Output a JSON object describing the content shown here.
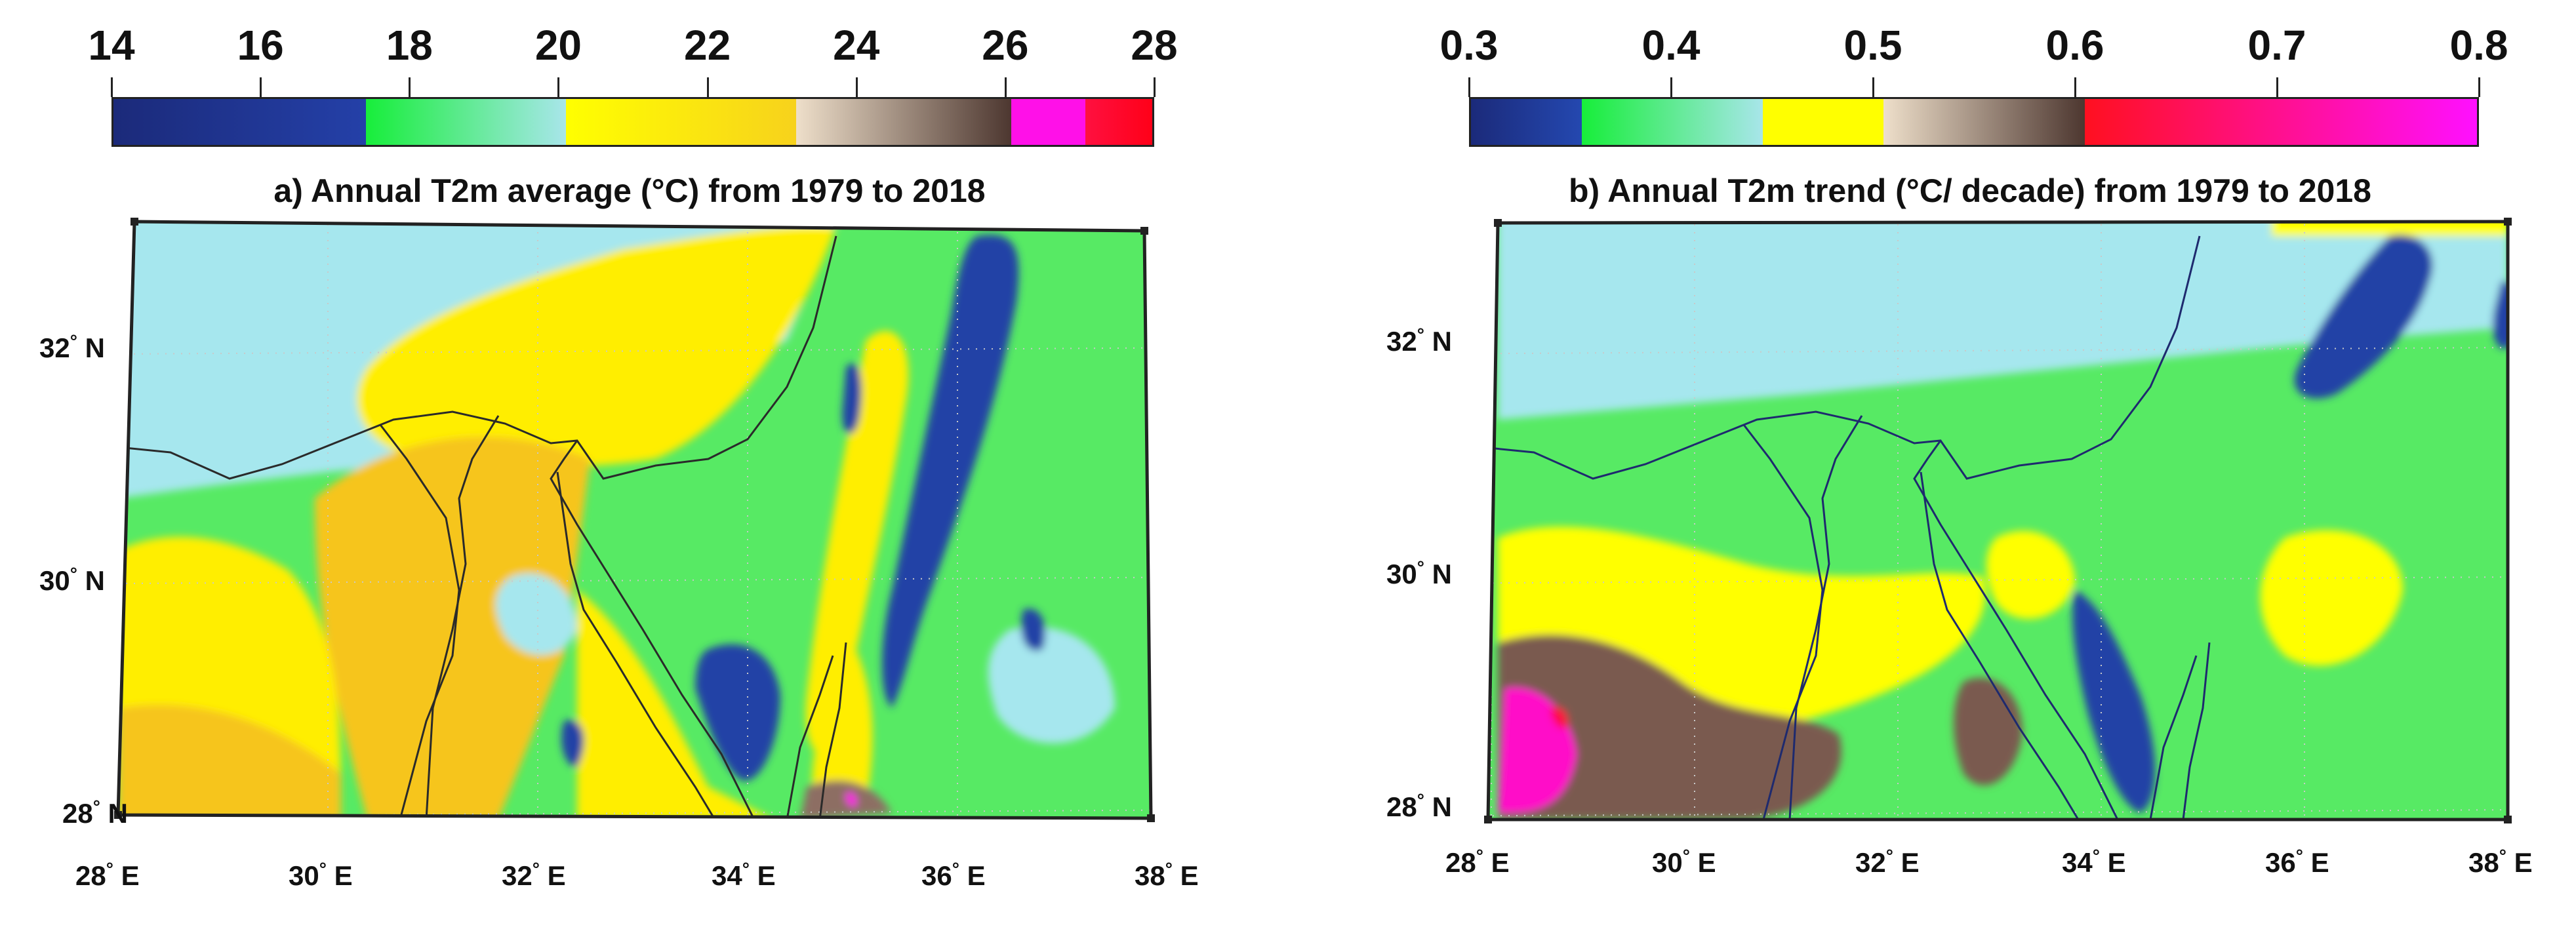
{
  "panels": [
    {
      "id": "a",
      "title": "a) Annual T2m average (°C) from 1979 to 2018",
      "colorbar": {
        "ticks": [
          "14",
          "16",
          "18",
          "20",
          "22",
          "24",
          "26",
          "28"
        ],
        "range": [
          14,
          28
        ],
        "segments": [
          {
            "from": 14,
            "to": 17.4,
            "colors": [
              "#1b2a7a",
              "#2440a8"
            ]
          },
          {
            "from": 17.4,
            "to": 20.1,
            "colors": [
              "#17ee3a",
              "#a8e6ea"
            ]
          },
          {
            "from": 20.1,
            "to": 23.2,
            "colors": [
              "#ffff00",
              "#f7d21c"
            ]
          },
          {
            "from": 23.2,
            "to": 26.1,
            "colors": [
              "#eedfca",
              "#4d3730"
            ]
          },
          {
            "from": 26.1,
            "to": 27.1,
            "colors": [
              "#ff10e8",
              "#ff10e8"
            ]
          },
          {
            "from": 27.1,
            "to": 28,
            "colors": [
              "#ff1040",
              "#ff0018"
            ]
          }
        ]
      },
      "map_colors": {
        "background": "#57ea64",
        "coast_sea": "#a6e7ee",
        "hot": "#ffee00",
        "hot2": "#f6c51f",
        "cold": "#2343a6",
        "brown": "#8d6e63",
        "magenta": "#ff10e8"
      }
    },
    {
      "id": "b",
      "title": "b) Annual T2m trend (°C/ decade) from 1979 to 2018",
      "colorbar": {
        "ticks": [
          "0.3",
          "0.4",
          "0.5",
          "0.6",
          "0.7",
          "0.8"
        ],
        "range": [
          0.3,
          0.8
        ],
        "segments": [
          {
            "from": 0.3,
            "to": 0.355,
            "colors": [
              "#1b2a7a",
              "#2448b0"
            ]
          },
          {
            "from": 0.355,
            "to": 0.445,
            "colors": [
              "#17ee3a",
              "#a8e6ea"
            ]
          },
          {
            "from": 0.445,
            "to": 0.505,
            "colors": [
              "#ffff00",
              "#ffff00"
            ]
          },
          {
            "from": 0.505,
            "to": 0.605,
            "colors": [
              "#eedfca",
              "#4d3730"
            ]
          },
          {
            "from": 0.605,
            "to": 0.8,
            "colors": [
              "#ff1020",
              "#ff10ff"
            ]
          }
        ]
      },
      "map_colors": {
        "background": "#57ea64",
        "coast_sea": "#a6e7ee",
        "hot": "#ffff00",
        "cold": "#2343a6",
        "brown": "#7a5a4f",
        "red": "#ff1040",
        "magenta": "#ff10c8"
      }
    }
  ],
  "latitude_labels": [
    "32° N",
    "30° N",
    "28° N"
  ],
  "longitude_labels": [
    "28° E",
    "30° E",
    "32° E",
    "34° E",
    "36° E",
    "38° E"
  ],
  "lat_parts": [
    {
      "num": "32",
      "hem": "N"
    },
    {
      "num": "30",
      "hem": "N"
    },
    {
      "num": "28",
      "hem": "N"
    }
  ],
  "lon_parts": [
    {
      "num": "28",
      "hem": "E"
    },
    {
      "num": "30",
      "hem": "E"
    },
    {
      "num": "32",
      "hem": "E"
    },
    {
      "num": "34",
      "hem": "E"
    },
    {
      "num": "36",
      "hem": "E"
    },
    {
      "num": "38",
      "hem": "E"
    }
  ]
}
